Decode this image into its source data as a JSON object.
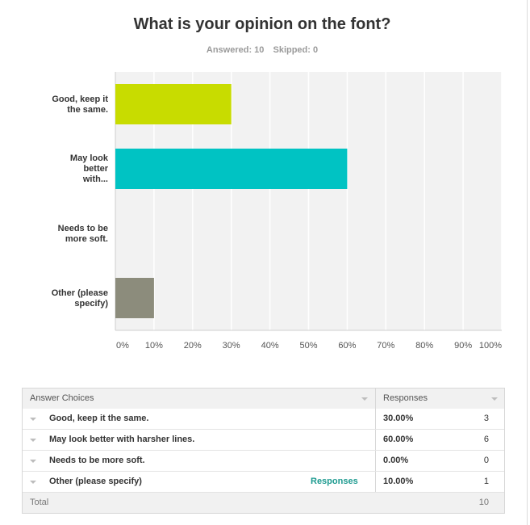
{
  "header": {
    "title": "What is your opinion on the font?",
    "answered": "Answered: 10",
    "skipped": "Skipped: 0"
  },
  "chart_data": {
    "type": "bar",
    "orientation": "horizontal",
    "categories": [
      "Good, keep it the same.",
      "May look better with...",
      "Needs to be more soft.",
      "Other (please specify)"
    ],
    "values": [
      30,
      60,
      0,
      10
    ],
    "colors": [
      "#c8dc00",
      "#00c3c3",
      "#b0b0b0",
      "#8c8c7c"
    ],
    "xlim": [
      0,
      100
    ],
    "xticks": [
      "0%",
      "10%",
      "20%",
      "30%",
      "40%",
      "50%",
      "60%",
      "70%",
      "80%",
      "90%",
      "100%"
    ],
    "grid": true
  },
  "table": {
    "headers": {
      "choices": "Answer Choices",
      "responses": "Responses"
    },
    "rows": [
      {
        "choice": "Good, keep it the same.",
        "percent": "30.00%",
        "count": "3",
        "link": ""
      },
      {
        "choice": "May look better with harsher lines.",
        "percent": "60.00%",
        "count": "6",
        "link": ""
      },
      {
        "choice": "Needs to be more soft.",
        "percent": "0.00%",
        "count": "0",
        "link": ""
      },
      {
        "choice": "Other (please specify)",
        "percent": "10.00%",
        "count": "1",
        "link": "Responses"
      }
    ],
    "total_label": "Total",
    "total_value": "10"
  }
}
